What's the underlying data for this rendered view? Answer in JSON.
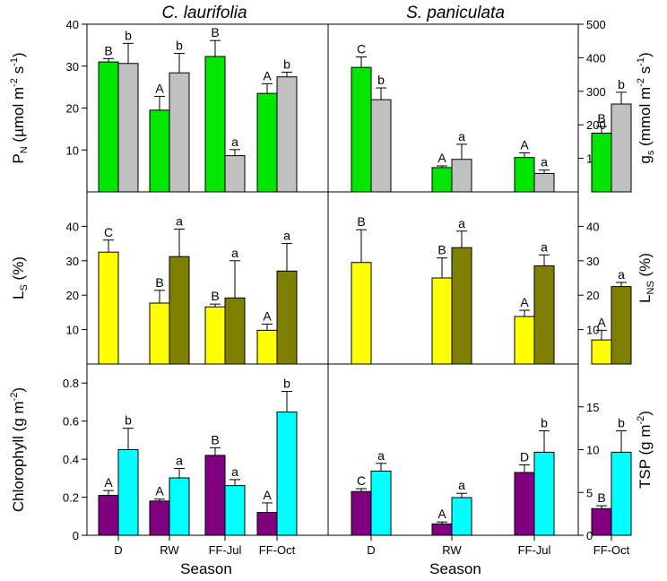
{
  "figure": {
    "titles": [
      "C. laurifolia",
      "S. paniculata"
    ],
    "season_label": "Season"
  },
  "chart_data": [
    {
      "type": "bar",
      "panel": "PN-gs",
      "species": "C. laurifolia",
      "categories": [
        "D",
        "RW",
        "FF-Jul",
        "FF-Oct"
      ],
      "ylabel": "P_N (µmol m^-2 s^-1)",
      "ylim": [
        0,
        40
      ],
      "yticks": [
        10,
        20,
        30,
        40
      ],
      "series": [
        {
          "name": "P_N",
          "axis": "left",
          "color": "#00e600",
          "values": [
            31,
            19.5,
            32.3,
            23.5
          ],
          "errors": [
            0.8,
            3.3,
            3.8,
            2.3
          ],
          "letters": [
            "B",
            "A",
            "B",
            "A"
          ]
        },
        {
          "name": "g_s",
          "axis": "right",
          "color": "#c0c0c0",
          "values": [
            383,
            355,
            108,
            343
          ],
          "errors": [
            60,
            58,
            18,
            14
          ],
          "letters": [
            "b",
            "b",
            "a",
            "b"
          ]
        }
      ]
    },
    {
      "type": "bar",
      "panel": "PN-gs",
      "species": "S. paniculata",
      "categories": [
        "D",
        "RW",
        "FF-Jul",
        "FF-Oct"
      ],
      "ylabel": "g_s (mmol m^-2 s^-1)",
      "ylim": [
        0,
        500
      ],
      "yticks": [
        100,
        200,
        300,
        400,
        500
      ],
      "series": [
        {
          "name": "P_N",
          "axis": "left",
          "color": "#00e600",
          "values": [
            29.7,
            5.8,
            8.2,
            14
          ],
          "errors": [
            2.5,
            0.4,
            1.1,
            1.6
          ],
          "letters": [
            "C",
            "A",
            "A",
            "B"
          ]
        },
        {
          "name": "g_s",
          "axis": "right",
          "color": "#c0c0c0",
          "values": [
            275,
            97,
            55,
            262
          ],
          "errors": [
            35,
            45,
            10,
            35
          ],
          "letters": [
            "b",
            "a",
            "a",
            "b"
          ]
        }
      ]
    },
    {
      "type": "bar",
      "panel": "LS-LNS",
      "species": "C. laurifolia",
      "categories": [
        "D",
        "RW",
        "FF-Jul",
        "FF-Oct"
      ],
      "ylabel": "L_S (%)",
      "ylim": [
        0,
        50
      ],
      "yticks": [
        10,
        20,
        30,
        40
      ],
      "series": [
        {
          "name": "L_S",
          "axis": "left",
          "color": "#ffff00",
          "values": [
            32.5,
            17.7,
            16.6,
            9.8
          ],
          "errors": [
            3.5,
            3.7,
            0.8,
            1.8
          ],
          "letters": [
            "C",
            "B",
            "B",
            "A"
          ]
        },
        {
          "name": "L_NS",
          "axis": "right",
          "color": "#808000",
          "values": [
            null,
            31.2,
            19.2,
            27
          ],
          "errors": [
            null,
            8,
            10.8,
            8
          ],
          "letters": [
            "",
            "a",
            "a",
            "a"
          ]
        }
      ]
    },
    {
      "type": "bar",
      "panel": "LS-LNS",
      "species": "S. paniculata",
      "categories": [
        "D",
        "RW",
        "FF-Jul",
        "FF-Oct"
      ],
      "ylabel": "L_NS (%)",
      "ylim": [
        0,
        50
      ],
      "yticks": [
        10,
        20,
        30,
        40
      ],
      "series": [
        {
          "name": "L_S",
          "axis": "left",
          "color": "#ffff00",
          "values": [
            29.5,
            25,
            13.8,
            7
          ],
          "errors": [
            9.5,
            5.8,
            1.8,
            2.8
          ],
          "letters": [
            "B",
            "B",
            "A",
            "A"
          ]
        },
        {
          "name": "L_NS",
          "axis": "right",
          "color": "#808000",
          "values": [
            null,
            33.8,
            28.5,
            22.5
          ],
          "errors": [
            null,
            4.8,
            3.2,
            1.2
          ],
          "letters": [
            "",
            "a",
            "a",
            "a"
          ]
        }
      ]
    },
    {
      "type": "bar",
      "panel": "Chl-TSP",
      "species": "C. laurifolia",
      "categories": [
        "D",
        "RW",
        "FF-Jul",
        "FF-Oct"
      ],
      "xlabel": "Season",
      "ylabel": "Chlorophyll (g m^-2)",
      "ylim": [
        0,
        0.9
      ],
      "yticks": [
        0.0,
        0.2,
        0.4,
        0.6,
        0.8
      ],
      "series": [
        {
          "name": "Chlorophyll",
          "axis": "left",
          "color": "#800080",
          "values": [
            0.21,
            0.18,
            0.42,
            0.12
          ],
          "errors": [
            0.025,
            0.01,
            0.04,
            0.05
          ],
          "letters": [
            "A",
            "A",
            "B",
            "A"
          ]
        },
        {
          "name": "TSP",
          "axis": "right",
          "color": "#00ffff",
          "values": [
            10,
            6.7,
            5.8,
            14.4
          ],
          "errors": [
            2.5,
            1.1,
            0.7,
            2.4
          ],
          "letters": [
            "b",
            "a",
            "a",
            "b"
          ]
        }
      ]
    },
    {
      "type": "bar",
      "panel": "Chl-TSP",
      "species": "S. paniculata",
      "categories": [
        "D",
        "RW",
        "FF-Jul",
        "FF-Oct"
      ],
      "xlabel": "Season",
      "ylabel": "TSP (g m^-2)",
      "ylim": [
        0,
        20
      ],
      "yticks": [
        0,
        5,
        10,
        15
      ],
      "series": [
        {
          "name": "Chlorophyll",
          "axis": "left",
          "color": "#800080",
          "values": [
            0.23,
            0.06,
            0.33,
            0.14
          ],
          "errors": [
            0.015,
            0.01,
            0.04,
            0.015
          ],
          "letters": [
            "C",
            "A",
            "D",
            "B"
          ]
        },
        {
          "name": "TSP",
          "axis": "right",
          "color": "#00ffff",
          "values": [
            7.5,
            4.4,
            9.7,
            9.7
          ],
          "errors": [
            0.9,
            0.5,
            2.5,
            2.5
          ],
          "letters": [
            "a",
            "a",
            "b",
            "b"
          ]
        }
      ]
    }
  ]
}
